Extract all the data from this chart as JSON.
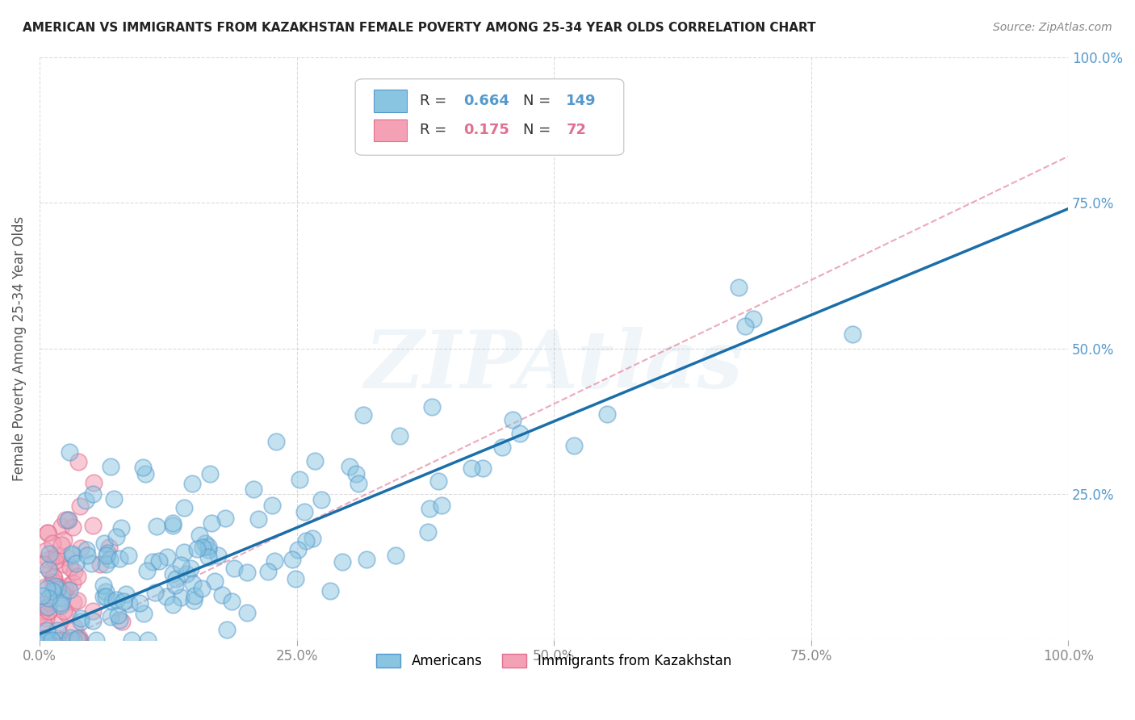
{
  "title": "AMERICAN VS IMMIGRANTS FROM KAZAKHSTAN FEMALE POVERTY AMONG 25-34 YEAR OLDS CORRELATION CHART",
  "source": "Source: ZipAtlas.com",
  "ylabel": "Female Poverty Among 25-34 Year Olds",
  "xlim": [
    0,
    1
  ],
  "ylim": [
    0,
    1
  ],
  "xticks": [
    0,
    0.25,
    0.5,
    0.75,
    1.0
  ],
  "yticks": [
    0,
    0.25,
    0.5,
    0.75,
    1.0
  ],
  "xticklabels": [
    "0.0%",
    "25.0%",
    "50.0%",
    "75.0%",
    "100.0%"
  ],
  "yticklabels_right": [
    "",
    "25.0%",
    "50.0%",
    "75.0%",
    "100.0%"
  ],
  "americans_R": 0.664,
  "americans_N": 149,
  "kazakhstan_R": 0.175,
  "kazakhstan_N": 72,
  "blue_color": "#89c4e1",
  "pink_color": "#f4a0b5",
  "blue_edge": "#5599cc",
  "pink_edge": "#e07090",
  "trend_blue": "#1a6faa",
  "trend_pink": "#e07090",
  "watermark": "ZIPAtlas",
  "background": "#ffffff",
  "legend_label_americans": "Americans",
  "legend_label_kazakhstan": "Immigrants from Kazakhstan",
  "title_color": "#222222",
  "source_color": "#888888",
  "axis_label_color": "#555555",
  "tick_label_color": "#888888",
  "right_tick_color": "#5599cc",
  "grid_color": "#cccccc"
}
